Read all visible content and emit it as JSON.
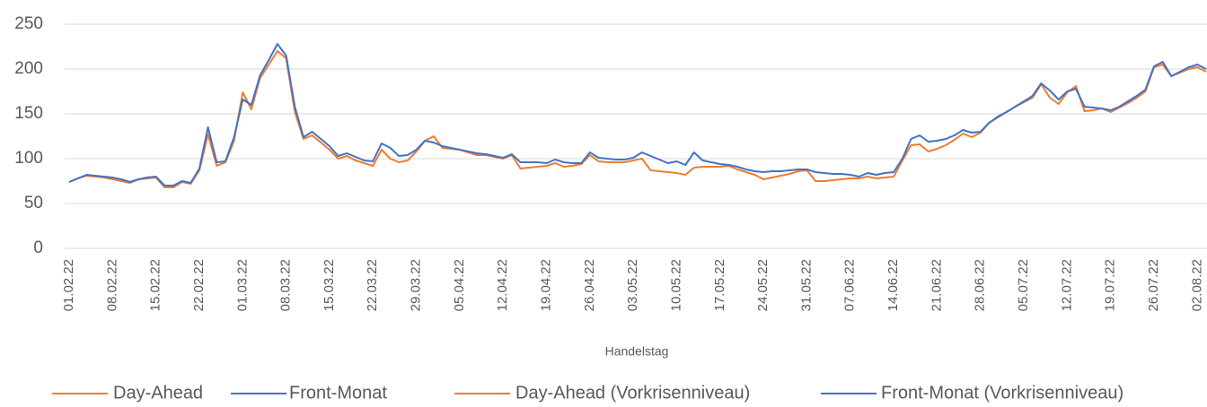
{
  "chart_data": {
    "type": "line",
    "x_label": "Handelstag",
    "categories": [
      "01.02.22",
      null,
      null,
      null,
      null,
      "08.02.22",
      null,
      null,
      null,
      null,
      "15.02.22",
      null,
      null,
      null,
      null,
      "22.02.22",
      null,
      null,
      null,
      null,
      "01.03.22",
      null,
      null,
      null,
      null,
      "08.03.22",
      null,
      null,
      null,
      null,
      "15.03.22",
      null,
      null,
      null,
      null,
      "22.03.22",
      null,
      null,
      null,
      null,
      "29.03.22",
      null,
      null,
      null,
      null,
      "05.04.22",
      null,
      null,
      null,
      null,
      "12.04.22",
      null,
      null,
      null,
      null,
      "19.04.22",
      null,
      null,
      null,
      null,
      "26.04.22",
      null,
      null,
      null,
      null,
      "03.05.22",
      null,
      null,
      null,
      null,
      "10.05.22",
      null,
      null,
      null,
      null,
      "17.05.22",
      null,
      null,
      null,
      null,
      "24.05.22",
      null,
      null,
      null,
      null,
      "31.05.22",
      null,
      null,
      null,
      null,
      "07.06.22",
      null,
      null,
      null,
      null,
      "14.06.22",
      null,
      null,
      null,
      null,
      "21.06.22",
      null,
      null,
      null,
      null,
      "28.06.22",
      null,
      null,
      null,
      null,
      "05.07.22",
      null,
      null,
      null,
      null,
      "12.07.22",
      null,
      null,
      null,
      null,
      "19.07.22",
      null,
      null,
      null,
      null,
      "26.07.22",
      null,
      null,
      null,
      null,
      "02.08.22",
      null
    ],
    "series": [
      {
        "name": "Day-Ahead",
        "color": "#ed7d31",
        "values": [
          74,
          78,
          81,
          80,
          79,
          77,
          75,
          73,
          77,
          78,
          79,
          68,
          68,
          74,
          72,
          87,
          127,
          92,
          96,
          120,
          174,
          155,
          190,
          205,
          220,
          212,
          152,
          122,
          126,
          118,
          110,
          100,
          103,
          98,
          95,
          92,
          110,
          100,
          96,
          98,
          108,
          120,
          125,
          112,
          111,
          110,
          107,
          104,
          104,
          102,
          100,
          104,
          89,
          90,
          91,
          92,
          95,
          91,
          92,
          94,
          104,
          97,
          96,
          96,
          96,
          98,
          100,
          87,
          86,
          85,
          84,
          82,
          90,
          91,
          91,
          91,
          92,
          88,
          85,
          82,
          77,
          79,
          81,
          83,
          86,
          87,
          75,
          75,
          76,
          77,
          78,
          78,
          80,
          78,
          79,
          80,
          98,
          115,
          116,
          108,
          111,
          115,
          121,
          128,
          124,
          129,
          140,
          146,
          152,
          158,
          163,
          168,
          183,
          168,
          161,
          174,
          181,
          153,
          154,
          156,
          152,
          157,
          162,
          168,
          175,
          202,
          205,
          192,
          196,
          200,
          202,
          197
        ]
      },
      {
        "name": "Front-Monat",
        "color": "#4472c4",
        "values": [
          74,
          78,
          82,
          81,
          80,
          79,
          77,
          74,
          77,
          79,
          80,
          70,
          70,
          75,
          73,
          89,
          135,
          96,
          97,
          124,
          166,
          160,
          193,
          210,
          228,
          215,
          158,
          124,
          130,
          122,
          114,
          103,
          106,
          102,
          98,
          97,
          117,
          112,
          103,
          104,
          110,
          120,
          118,
          114,
          112,
          110,
          108,
          106,
          105,
          103,
          101,
          105,
          96,
          96,
          96,
          95,
          99,
          96,
          95,
          95,
          107,
          101,
          100,
          99,
          99,
          101,
          107,
          103,
          99,
          95,
          97,
          93,
          107,
          98,
          96,
          94,
          93,
          91,
          88,
          86,
          85,
          86,
          86,
          87,
          88,
          88,
          85,
          84,
          83,
          83,
          82,
          80,
          84,
          82,
          84,
          85,
          100,
          122,
          126,
          119,
          120,
          122,
          126,
          132,
          129,
          130,
          140,
          147,
          152,
          158,
          164,
          170,
          184,
          176,
          166,
          175,
          178,
          158,
          157,
          156,
          154,
          158,
          164,
          170,
          177,
          203,
          208,
          192,
          197,
          202,
          205,
          200
        ]
      },
      {
        "name": "Day-Ahead (Vorkrisenniveau)",
        "color": "#ed7d31",
        "values": [
          null,
          null,
          null,
          null,
          null,
          null,
          null,
          null,
          null,
          null,
          null,
          null,
          null,
          null,
          null,
          null,
          null,
          null,
          null,
          null,
          null,
          null,
          null,
          null,
          null,
          null,
          null,
          null,
          null,
          null,
          null,
          null,
          null,
          null,
          null,
          null,
          null,
          null,
          null,
          null,
          null,
          null,
          null,
          null,
          null,
          null,
          null,
          null,
          null,
          null,
          null,
          null,
          null,
          null,
          null,
          null,
          null,
          null,
          null,
          null,
          null,
          null,
          null,
          null,
          null,
          null,
          null,
          null,
          null,
          null,
          null,
          null,
          null,
          null,
          null,
          null,
          null,
          null,
          null,
          null,
          null,
          null,
          null,
          null,
          null,
          null,
          null,
          null,
          null,
          null,
          null,
          null,
          null,
          null,
          null,
          null,
          null,
          null,
          null,
          null,
          null,
          null,
          null,
          null,
          null,
          null,
          null,
          null,
          null,
          null,
          null,
          null,
          null,
          null,
          null,
          null,
          null,
          null,
          null,
          null,
          null,
          null,
          null,
          null,
          null,
          null,
          null,
          null,
          null,
          null,
          null,
          null
        ]
      },
      {
        "name": "Front-Monat (Vorkrisenniveau)",
        "color": "#4472c4",
        "values": [
          null,
          null,
          null,
          null,
          null,
          null,
          null,
          null,
          null,
          null,
          null,
          null,
          null,
          null,
          null,
          null,
          null,
          null,
          null,
          null,
          null,
          null,
          null,
          null,
          null,
          null,
          null,
          null,
          null,
          null,
          null,
          null,
          null,
          null,
          null,
          null,
          null,
          null,
          null,
          null,
          null,
          null,
          null,
          null,
          null,
          null,
          null,
          null,
          null,
          null,
          null,
          null,
          null,
          null,
          null,
          null,
          null,
          null,
          null,
          null,
          null,
          null,
          null,
          null,
          null,
          null,
          null,
          null,
          null,
          null,
          null,
          null,
          null,
          null,
          null,
          null,
          null,
          null,
          null,
          null,
          null,
          null,
          null,
          null,
          null,
          null,
          null,
          null,
          null,
          null,
          null,
          null,
          null,
          null,
          null,
          null,
          null,
          null,
          null,
          null,
          null,
          null,
          null,
          null,
          null,
          null,
          null,
          null,
          null,
          null,
          null,
          null,
          null,
          null,
          null,
          null,
          null,
          null,
          null,
          null,
          null,
          null,
          null,
          null,
          null,
          null,
          null,
          null,
          null,
          null,
          null,
          null
        ]
      }
    ],
    "ylim": [
      0,
      250
    ],
    "yticks": [
      0,
      50,
      100,
      150,
      200,
      250
    ],
    "grid": true,
    "legend": "bottom"
  }
}
